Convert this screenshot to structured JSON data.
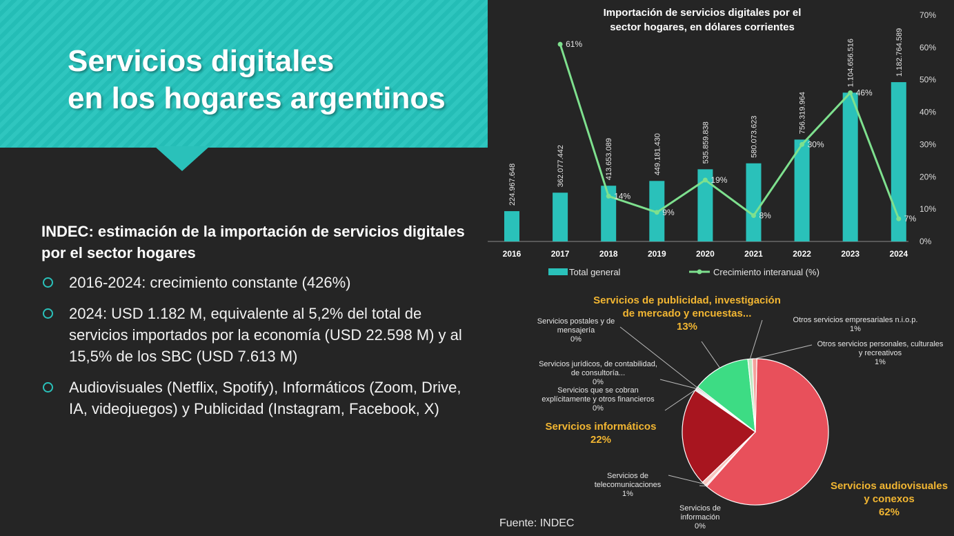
{
  "slide": {
    "title_line1": "Servicios digitales",
    "title_line2": "en los hogares argentinos",
    "subtitle": "INDEC: estimación de la importación de servicios digitales por el sector hogares",
    "bullets": [
      "2016-2024: crecimiento constante (426%)",
      "2024: USD 1.182 M, equivalente al 5,2% del total de servicios importados por la economía (USD 22.598 M) y al 15,5% de los SBC (USD 7.613 M)",
      "Audiovisuales (Netflix, Spotify), Informáticos (Zoom, Drive, IA, videojuegos) y Publicidad (Instagram, Facebook, X)"
    ],
    "source": "Fuente: INDEC",
    "colors": {
      "accent": "#2ac1ba",
      "background": "#252525",
      "line": "#7ee08e",
      "highlight": "#f2b632"
    }
  },
  "chart_data": [
    {
      "type": "bar",
      "title_line1": "Importación de servicios digitales por el",
      "title_line2": "sector hogares, en dólares corrientes",
      "categories": [
        "2016",
        "2017",
        "2018",
        "2019",
        "2020",
        "2021",
        "2022",
        "2023",
        "2024"
      ],
      "series": [
        {
          "name": "Total general",
          "type": "bar",
          "axis": "left",
          "values": [
            224967648,
            362077442,
            413653089,
            449181430,
            535859838,
            580073623,
            756319964,
            1104656516,
            1182764589
          ],
          "labels": [
            "224.967.648",
            "362.077.442",
            "413.653.089",
            "449.181.430",
            "535.859.838",
            "580.073.623",
            "756.319.964",
            "1.104.656.516",
            "1.182.764.589"
          ]
        },
        {
          "name": "Crecimiento interanual (%)",
          "type": "line",
          "axis": "right",
          "values": [
            null,
            61,
            14,
            9,
            19,
            8,
            30,
            46,
            7
          ],
          "labels": [
            "",
            "61%",
            "14%",
            "9%",
            "19%",
            "8%",
            "30%",
            "46%",
            "7%"
          ]
        }
      ],
      "y_left_range": [
        0,
        1680000000
      ],
      "y_right_range": [
        0,
        70
      ],
      "y_right_ticks": [
        "0%",
        "10%",
        "20%",
        "30%",
        "40%",
        "50%",
        "60%",
        "70%"
      ],
      "legend_position": "bottom"
    },
    {
      "type": "pie",
      "slices": [
        {
          "name": "Servicios audiovisuales y conexos",
          "value": 62,
          "label": "62%",
          "name_line1": "Servicios audiovisuales",
          "name_line2": "y conexos",
          "color": "#e8505b"
        },
        {
          "name": "Servicios de información",
          "value": 0,
          "label": "0%",
          "name_line1": "Servicios de",
          "name_line2": "información",
          "color": "#f3b1b6"
        },
        {
          "name": "Servicios de telecomunicaciones",
          "value": 1,
          "label": "1%",
          "name_line1": "Servicios de",
          "name_line2": "telecomunicaciones",
          "color": "#f6c7c0"
        },
        {
          "name": "Servicios informáticos",
          "value": 22,
          "label": "22%",
          "name_line1": "Servicios informáticos",
          "name_line2": "",
          "color": "#a8151f"
        },
        {
          "name": "Servicios que se cobran explícitamente y otros financieros",
          "value": 0,
          "label": "0%",
          "name_line1": "Servicios que se cobran",
          "name_line2": "explícitamente y otros financieros",
          "color": "#cfcfcf"
        },
        {
          "name": "Servicios jurídicos, de contabilidad, de consultoría...",
          "value": 0,
          "label": "0%",
          "name_line1": "Servicios jurídicos, de contabilidad,",
          "name_line2": "de consultoría...",
          "color": "#bdbdbd"
        },
        {
          "name": "Servicios postales y de mensajería",
          "value": 0,
          "label": "0%",
          "name_line1": "Servicios postales y de",
          "name_line2": "mensajería",
          "color": "#9e9e9e"
        },
        {
          "name": "Servicios de publicidad, investigación de mercado y encuestas...",
          "value": 13,
          "label": "13%",
          "name_line1": "Servicios de publicidad, investigación",
          "name_line2": "de mercado y encuestas...",
          "color": "#3ddc84"
        },
        {
          "name": "Otros servicios empresariales n.i.o.p.",
          "value": 1,
          "label": "1%",
          "name_line1": "Otros servicios empresariales n.i.o.p.",
          "name_line2": "",
          "color": "#bfe9c4"
        },
        {
          "name": "Otros servicios personales, culturales y recreativos",
          "value": 1,
          "label": "1%",
          "name_line1": "Otros servicios personales, culturales",
          "name_line2": "y recreativos",
          "color": "#f4a09b"
        }
      ]
    }
  ]
}
